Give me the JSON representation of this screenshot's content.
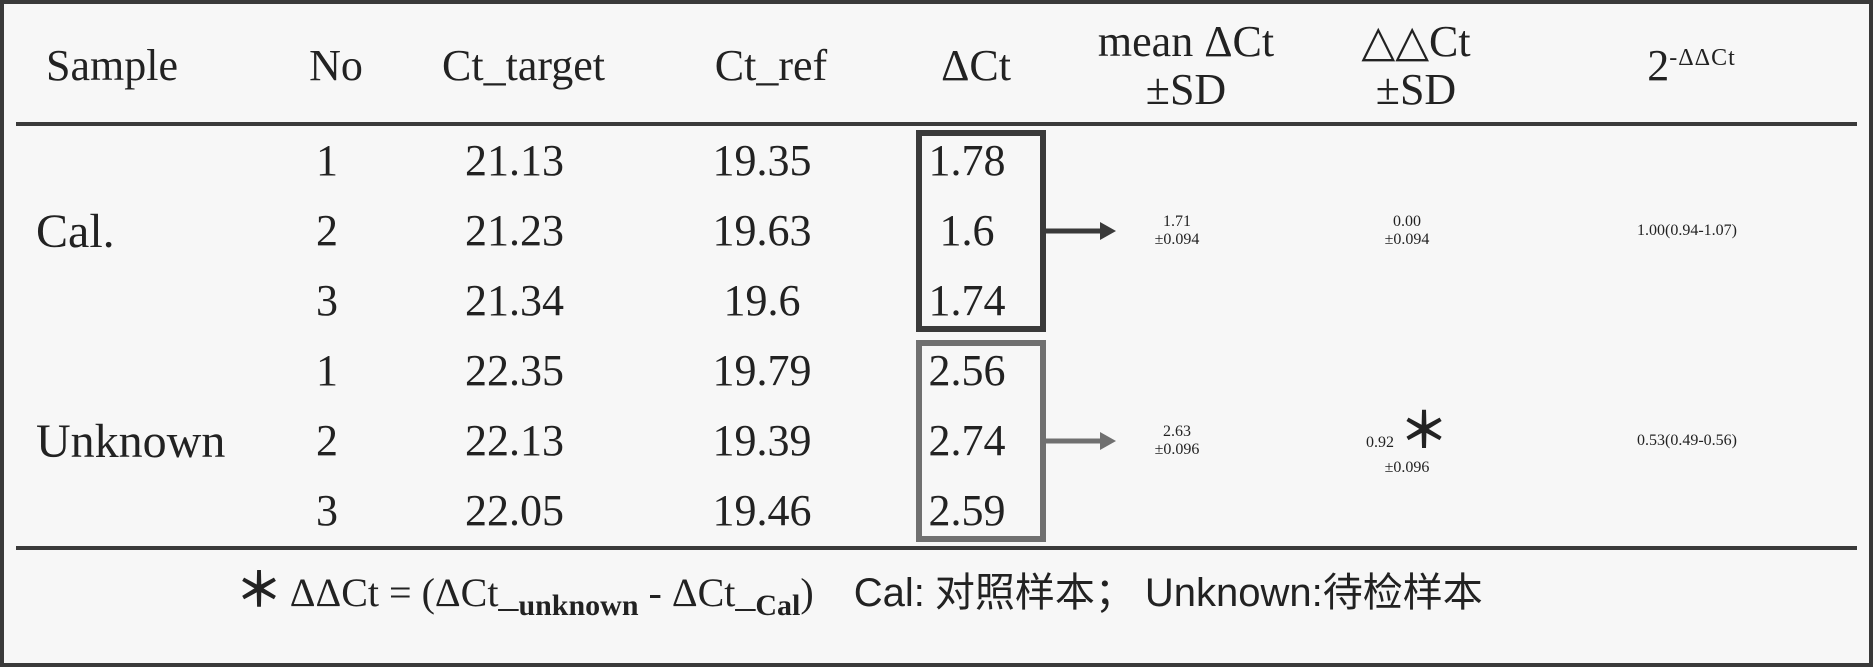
{
  "table": {
    "type": "table",
    "columns": {
      "sample": "Sample",
      "no": "No",
      "ct_target": "Ct_target",
      "ct_ref": "Ct_ref",
      "dct": "ΔCt",
      "mean_dct_top": "mean ΔCt",
      "mean_dct_sd": "±SD",
      "ddct_top": "△△Ct",
      "ddct_sd": "±SD",
      "fold_label": "2",
      "fold_exp": "-ΔΔCt"
    },
    "groups": [
      {
        "sample": "Cal.",
        "rows": [
          {
            "no": "1",
            "ct_target": "21.13",
            "ct_ref": "19.35",
            "dct": "1.78"
          },
          {
            "no": "2",
            "ct_target": "21.23",
            "ct_ref": "19.63",
            "dct": "1.6"
          },
          {
            "no": "3",
            "ct_target": "21.34",
            "ct_ref": "19.6",
            "dct": "1.74"
          }
        ],
        "mean_dct": "1.71",
        "mean_dct_sd": "±0.094",
        "ddct": "0.00",
        "ddct_sd": "±0.094",
        "ddct_star": false,
        "fold": "1.00(0.94-1.07)",
        "box_color": "#3a3a3a"
      },
      {
        "sample": "Unknown",
        "rows": [
          {
            "no": "1",
            "ct_target": "22.35",
            "ct_ref": "19.79",
            "dct": "2.56"
          },
          {
            "no": "2",
            "ct_target": "22.13",
            "ct_ref": "19.39",
            "dct": "2.74"
          },
          {
            "no": "3",
            "ct_target": "22.05",
            "ct_ref": "19.46",
            "dct": "2.59"
          }
        ],
        "mean_dct": "2.63",
        "mean_dct_sd": "±0.096",
        "ddct": "0.92",
        "ddct_sd": "±0.096",
        "ddct_star": true,
        "fold": "0.53(0.49-0.56)",
        "box_color": "#707070"
      }
    ],
    "footnote": {
      "star": "＊",
      "formula_prefix": "ΔΔCt = (ΔCt_",
      "formula_sub1": "unknown",
      "formula_mid": " - ΔCt_",
      "formula_sub2": "Cal",
      "formula_suffix": ")",
      "cal_label": "Cal:",
      "cal_text": "对照样本；",
      "unknown_label": "Unknown:",
      "unknown_text": "待检样本"
    },
    "style": {
      "border_color": "#3a3a3a",
      "background_color": "#f7f7f7",
      "text_color": "#222222",
      "font_size_body": 44,
      "font_size_header": 44,
      "font_size_sample": 48,
      "box_stroke_width": 6,
      "rule_width": 4
    }
  }
}
